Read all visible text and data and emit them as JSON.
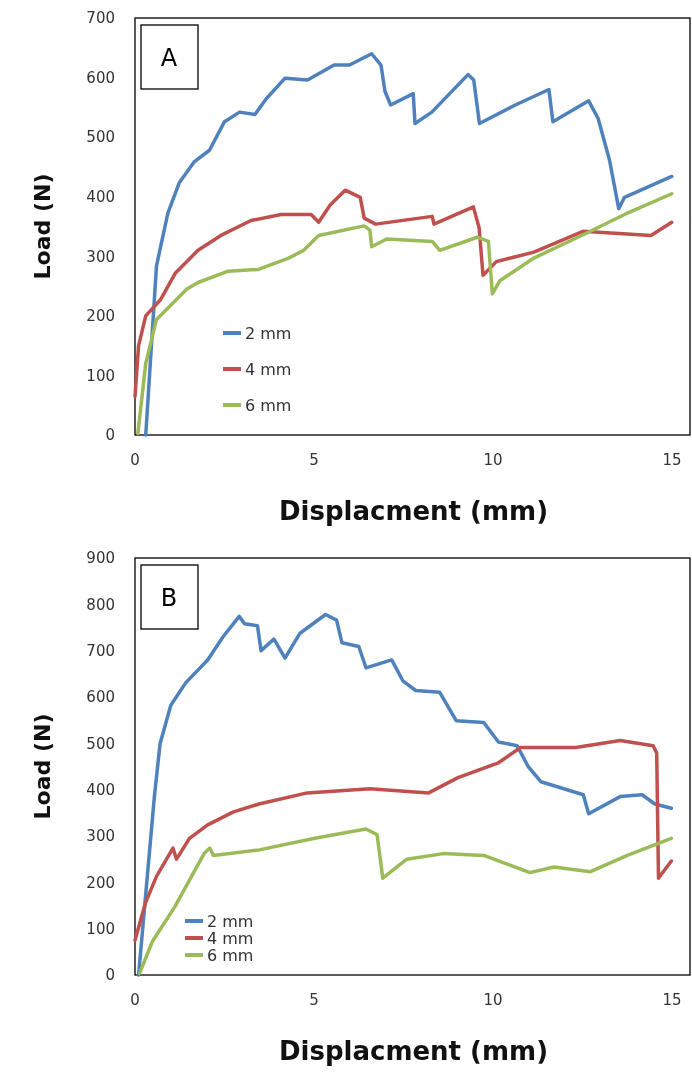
{
  "chart_data": [
    {
      "type": "line",
      "xlabel": "Displacment (mm)",
      "ylabel": "Load (N)",
      "xlim": [
        0,
        15.5
      ],
      "xticks": [
        0,
        5,
        10,
        15
      ],
      "ylim": [
        0,
        700
      ],
      "yticks": [
        0,
        100,
        200,
        300,
        400,
        500,
        600,
        700
      ],
      "grid": false,
      "legend": "bottom left",
      "marker": "none",
      "line_style": "solid",
      "annotations": [
        "A"
      ],
      "series": [
        {
          "name": "2 mm",
          "color": "#4f81bd",
          "x": [
            0.3,
            0.6,
            0.92,
            1.24,
            1.66,
            2.08,
            2.5,
            2.92,
            3.35,
            3.66,
            4.19,
            4.82,
            5.56,
            5.99,
            6.61,
            6.87,
            6.98,
            7.14,
            7.77,
            7.82,
            8.29,
            9.3,
            9.46,
            9.62,
            10.62,
            11.56,
            11.67,
            12.67,
            12.93,
            13.25,
            13.51,
            13.67,
            14.99
          ],
          "values": [
            0,
            284,
            373,
            424,
            459,
            478,
            526,
            542,
            538,
            564,
            599,
            596,
            621,
            621,
            640,
            621,
            577,
            554,
            573,
            523,
            542,
            605,
            596,
            523,
            554,
            580,
            526,
            561,
            532,
            462,
            380,
            399,
            434
          ]
        },
        {
          "name": "4 mm",
          "color": "#c0504d",
          "x": [
            0,
            0.1,
            0.3,
            0.71,
            1.13,
            1.76,
            2.4,
            3.24,
            4.08,
            4.92,
            5.13,
            5.45,
            5.87,
            6.29,
            6.4,
            6.72,
            8.3,
            8.35,
            9.45,
            9.61,
            9.72,
            10.09,
            11.14,
            12.51,
            14.41,
            14.99
          ],
          "values": [
            65,
            150,
            200,
            227,
            272,
            310,
            335,
            360,
            370,
            370,
            357,
            386,
            411,
            399,
            364,
            354,
            367,
            354,
            383,
            348,
            268,
            291,
            307,
            342,
            335,
            357
          ]
        },
        {
          "name": "6 mm",
          "color": "#9bbb59",
          "x": [
            0.08,
            0.3,
            0.6,
            1.45,
            1.76,
            2.6,
            3.45,
            4.29,
            4.71,
            5.13,
            6.4,
            6.56,
            6.61,
            7.03,
            8.3,
            8.51,
            9.56,
            9.87,
            9.98,
            10.19,
            11.14,
            12.72,
            13.77,
            14.99
          ],
          "values": [
            3,
            120,
            194,
            245,
            256,
            275,
            278,
            297,
            310,
            335,
            351,
            344,
            316,
            329,
            325,
            310,
            332,
            325,
            237,
            259,
            297,
            342,
            373,
            405
          ]
        }
      ]
    },
    {
      "type": "line",
      "xlabel": "Displacment (mm)",
      "ylabel": "Load (N)",
      "xlim": [
        0,
        15.5
      ],
      "xticks": [
        0,
        5,
        10,
        15
      ],
      "ylim": [
        0,
        900
      ],
      "yticks": [
        0,
        100,
        200,
        300,
        400,
        500,
        600,
        700,
        800,
        900
      ],
      "grid": false,
      "legend": "bottom left",
      "marker": "none",
      "line_style": "solid",
      "annotations": [
        "B"
      ],
      "series": [
        {
          "name": "2 mm",
          "color": "#4f81bd",
          "x": [
            0.1,
            0.54,
            0.7,
            1.0,
            1.42,
            2.03,
            2.45,
            2.91,
            3.06,
            3.42,
            3.52,
            3.88,
            4.19,
            4.6,
            5.32,
            5.63,
            5.78,
            6.25,
            6.45,
            7.17,
            7.48,
            7.84,
            8.51,
            8.97,
            9.74,
            10.15,
            10.67,
            10.98,
            11.34,
            12.52,
            12.67,
            13.55,
            14.16,
            14.52,
            14.98
          ],
          "values": [
            0,
            384,
            499,
            582,
            631,
            680,
            729,
            774,
            758,
            754,
            700,
            725,
            684,
            737,
            778,
            766,
            717,
            709,
            663,
            680,
            635,
            614,
            610,
            549,
            545,
            503,
            495,
            450,
            417,
            389,
            348,
            385,
            389,
            369,
            360
          ]
        },
        {
          "name": "4 mm",
          "color": "#c0504d",
          "x": [
            0,
            0.29,
            0.6,
            1.06,
            1.16,
            1.52,
            2.03,
            2.75,
            3.46,
            4.81,
            6.56,
            8.2,
            9.02,
            10.15,
            10.77,
            12.31,
            13.55,
            14.47,
            14.57,
            14.62,
            14.98
          ],
          "values": [
            75,
            155,
            213,
            274,
            250,
            295,
            324,
            352,
            369,
            393,
            402,
            393,
            426,
            458,
            491,
            491,
            506,
            495,
            479,
            209,
            246
          ]
        },
        {
          "name": "6 mm",
          "color": "#9bbb59",
          "x": [
            0.13,
            0.49,
            1.11,
            1.93,
            2.09,
            2.19,
            3.47,
            5.02,
            6.45,
            6.76,
            6.92,
            7.59,
            8.61,
            9.74,
            11.03,
            11.7,
            12.72,
            13.75,
            14.98
          ],
          "values": [
            4,
            73,
            147,
            262,
            274,
            258,
            270,
            295,
            315,
            303,
            209,
            250,
            262,
            258,
            221,
            233,
            223,
            258,
            295
          ]
        }
      ]
    }
  ]
}
